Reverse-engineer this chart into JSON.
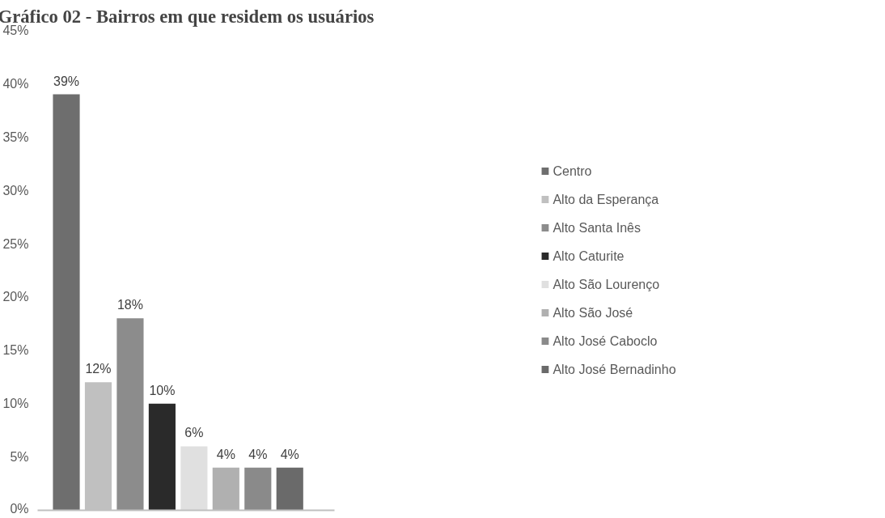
{
  "chart_data": {
    "type": "bar",
    "title": "Gráfico 02 - Bairros em que residem os usuários",
    "categories": [
      null
    ],
    "series": [
      {
        "name": "Centro",
        "color": "#6e6e6e",
        "values": [
          39
        ],
        "value_labels": [
          "39%"
        ]
      },
      {
        "name": "Alto da Esperança",
        "color": "#c0c0c0",
        "values": [
          12
        ],
        "value_labels": [
          "12%"
        ]
      },
      {
        "name": "Alto Santa Inês",
        "color": "#8c8c8c",
        "values": [
          18
        ],
        "value_labels": [
          "18%"
        ]
      },
      {
        "name": "Alto Caturite",
        "color": "#2a2a2a",
        "values": [
          10
        ],
        "value_labels": [
          "10%"
        ]
      },
      {
        "name": "Alto São Lourenço",
        "color": "#e0e0e0",
        "values": [
          6
        ],
        "value_labels": [
          "6%"
        ]
      },
      {
        "name": "Alto São José",
        "color": "#b0b0b0",
        "values": [
          4
        ],
        "value_labels": [
          "4%"
        ]
      },
      {
        "name": "Alto José Caboclo",
        "color": "#8a8a8a",
        "values": [
          4
        ],
        "value_labels": [
          "4%"
        ]
      },
      {
        "name": "Alto José Bernadinho",
        "color": "#6a6a6a",
        "values": [
          4
        ],
        "value_labels": [
          "4%"
        ]
      }
    ],
    "ylim": [
      0,
      45
    ],
    "yticks": [
      {
        "value": 0,
        "label": "0%"
      },
      {
        "value": 5,
        "label": "5%"
      },
      {
        "value": 10,
        "label": "10%"
      },
      {
        "value": 15,
        "label": "15%"
      },
      {
        "value": 20,
        "label": "20%"
      },
      {
        "value": 25,
        "label": "25%"
      },
      {
        "value": 30,
        "label": "30%"
      },
      {
        "value": 35,
        "label": "35%"
      },
      {
        "value": 40,
        "label": "40%"
      },
      {
        "value": 45,
        "label": "45%"
      }
    ],
    "grid": false,
    "legend": "right",
    "tick_labels": "y"
  }
}
